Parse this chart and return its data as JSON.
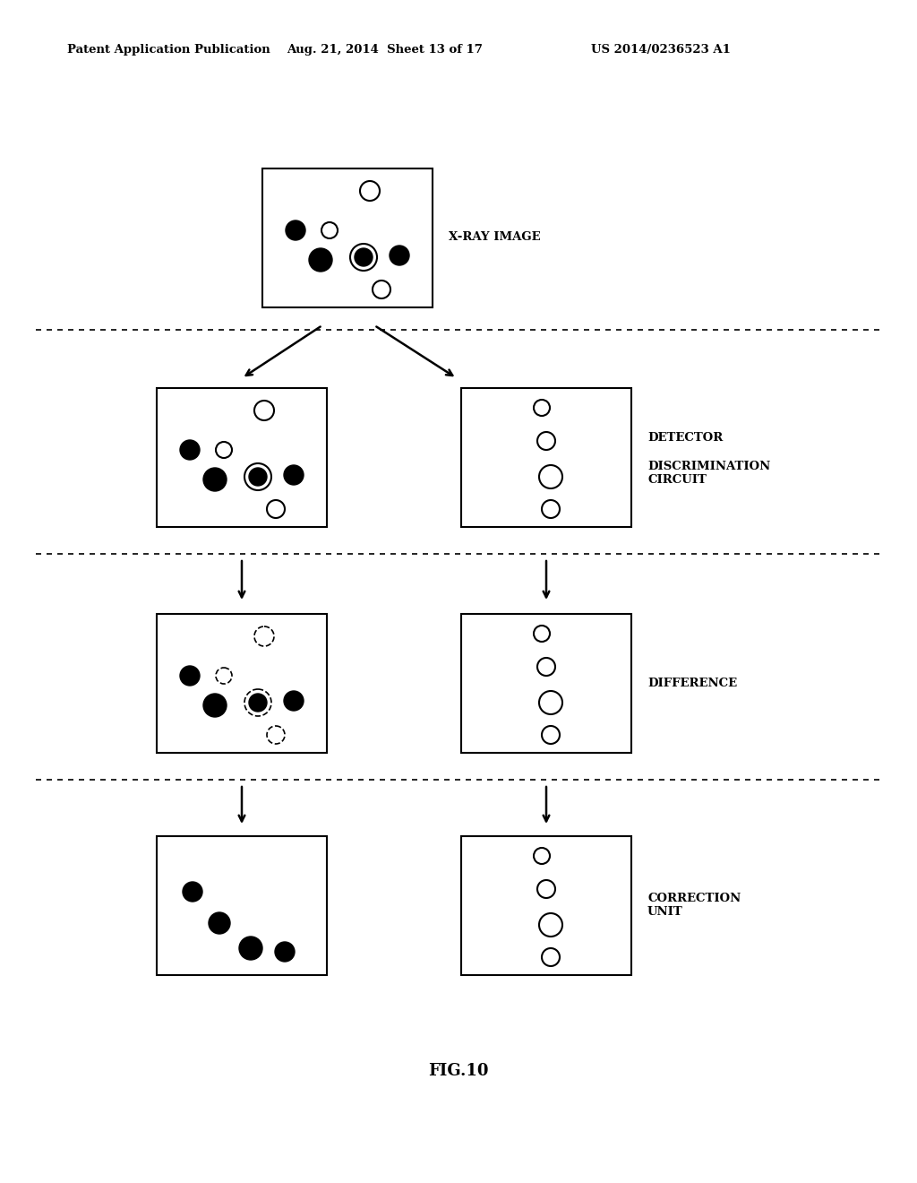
{
  "background_color": "#ffffff",
  "header_left": "Patent Application Publication",
  "header_mid": "Aug. 21, 2014  Sheet 13 of 17",
  "header_right": "US 2014/0236523 A1",
  "figure_caption": "FIG.10",
  "labels": {
    "xray": "X-RAY IMAGE",
    "detector": "DETECTOR",
    "discrimination": "DISCRIMINATION\nCIRCUIT",
    "difference": "DIFFERENCE",
    "correction": "CORRECTION\nUNIT"
  }
}
